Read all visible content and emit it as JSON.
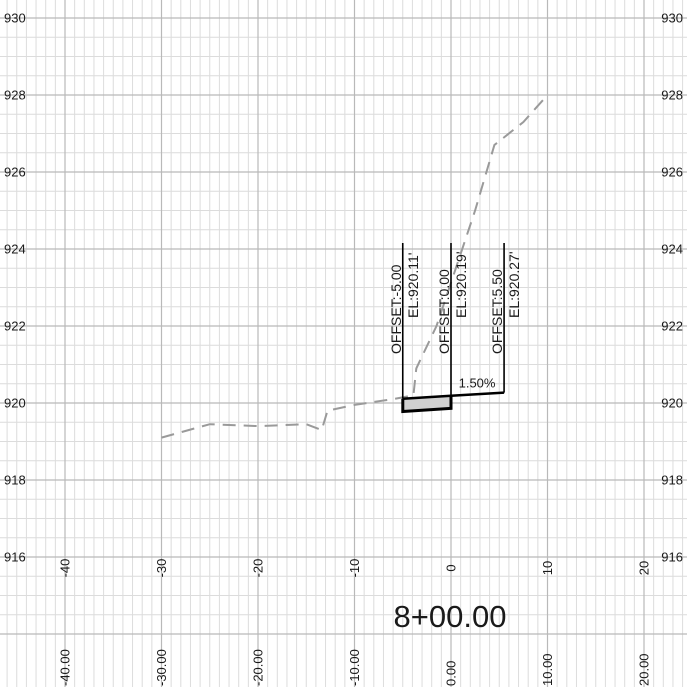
{
  "station": "8+00.00",
  "chart_data": {
    "type": "line",
    "x_range": [
      -40,
      20
    ],
    "y_range": [
      916,
      930
    ],
    "grid": true,
    "elevation_ticks": [
      "916",
      "918",
      "920",
      "922",
      "924",
      "926",
      "928",
      "930"
    ],
    "offset_ticks": [
      {
        "x": -40,
        "label": "-40"
      },
      {
        "x": -30,
        "label": "-30"
      },
      {
        "x": -20,
        "label": "-20"
      },
      {
        "x": -10,
        "label": "-10"
      },
      {
        "x": 0,
        "label": "0"
      },
      {
        "x": 10,
        "label": "10"
      },
      {
        "x": 20,
        "label": "20"
      }
    ],
    "offset_values": [
      {
        "x": -40,
        "label": "-40.00"
      },
      {
        "x": -30,
        "label": "-30.00"
      },
      {
        "x": -20,
        "label": "-20.00"
      },
      {
        "x": -10,
        "label": "-10.00"
      },
      {
        "x": 0,
        "label": "0.00"
      },
      {
        "x": 10,
        "label": "10.00"
      },
      {
        "x": 20,
        "label": "20.00"
      }
    ],
    "existing_ground": [
      [
        -30,
        919.1
      ],
      [
        -25,
        919.45
      ],
      [
        -20,
        919.4
      ],
      [
        -15,
        919.45
      ],
      [
        -13.4,
        919.3
      ],
      [
        -12.8,
        919.8
      ],
      [
        -10,
        919.95
      ],
      [
        -6,
        920.1
      ],
      [
        -3.9,
        920.2
      ],
      [
        -3.6,
        920.9
      ],
      [
        -1.5,
        922.0
      ],
      [
        0.5,
        923.5
      ],
      [
        2.5,
        925.0
      ],
      [
        4.5,
        926.7
      ],
      [
        7.5,
        927.3
      ],
      [
        10,
        928.0
      ]
    ],
    "proposed_surface": [
      [
        -5.0,
        920.11
      ],
      [
        0.0,
        920.19
      ],
      [
        5.5,
        920.27
      ]
    ],
    "pavement_bottom": [
      [
        -5.0,
        919.78
      ],
      [
        0.0,
        919.86
      ]
    ],
    "pavement_profile": [
      [
        -5.0,
        920.11
      ],
      [
        -5.0,
        919.78
      ],
      [
        0.0,
        919.86
      ],
      [
        0.0,
        920.19
      ]
    ],
    "grade_label": {
      "x": 2.7,
      "y": 920.35,
      "text": "1.50%"
    },
    "offset_labels": [
      {
        "x": -5.0,
        "offset": "OFFSET:-5.00",
        "elevation": "EL:920.11'"
      },
      {
        "x": 0.0,
        "offset": "OFFSET:0.00",
        "elevation": "EL:920.19'"
      },
      {
        "x": 5.5,
        "offset": "OFFSET:5.50",
        "elevation": "EL:920.27'"
      }
    ]
  }
}
